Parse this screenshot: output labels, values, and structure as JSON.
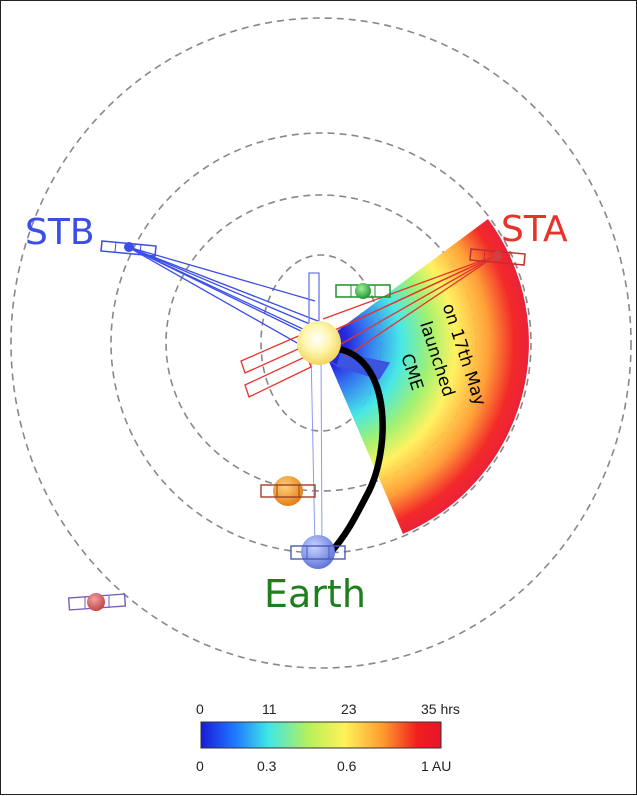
{
  "labels": {
    "stb": "STB",
    "sta": "STA",
    "earth": "Earth",
    "cme_line1": "CME",
    "cme_line2": "launched",
    "cme_line3": "on 17th May"
  },
  "colorbar": {
    "top_ticks": [
      "0",
      "11",
      "23",
      "35 hrs"
    ],
    "bottom_ticks": [
      "0",
      "0.3",
      "0.6",
      "1 AU"
    ],
    "colors": [
      "#1a1ad9",
      "#1e78ff",
      "#3ee6e6",
      "#b8f05a",
      "#fff25a",
      "#ff9a2e",
      "#f21e1e",
      "#e8152a"
    ]
  },
  "colors": {
    "stb": "#3b4ee8",
    "sta": "#e8322c",
    "earth": "#1f7f1f",
    "orbit": "#888888",
    "cme_track": "#000000"
  }
}
